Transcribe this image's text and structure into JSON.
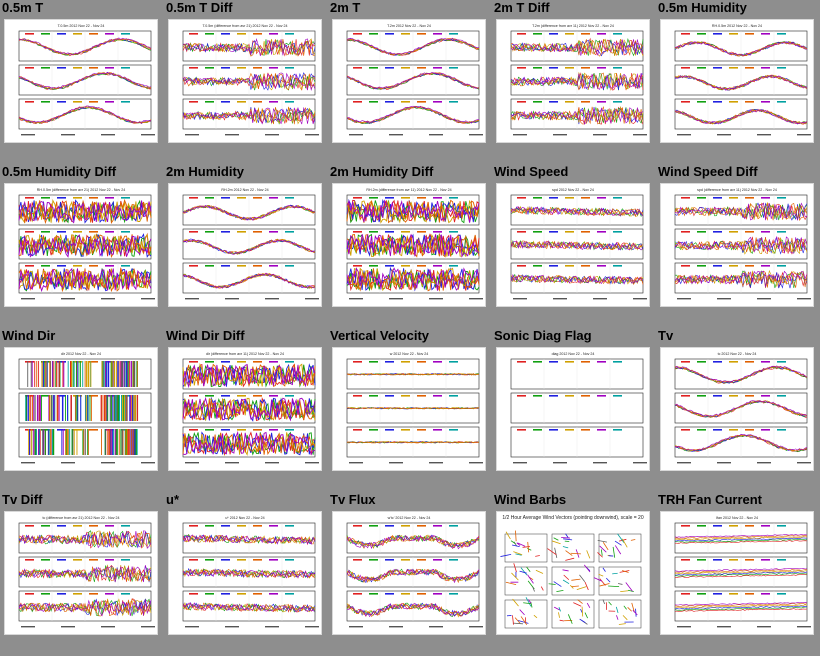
{
  "plots": [
    {
      "title": "0.5m T",
      "caption": "T.0.5m 2012 Nov 22 - Nov 24",
      "variant": "temp"
    },
    {
      "title": "0.5m T Diff",
      "caption": "T.0.5m (difference from avr 21) 2012 Nov 22 - Nov 24",
      "variant": "diff"
    },
    {
      "title": "2m T",
      "caption": "T.2m 2012 Nov 22 - Nov 24",
      "variant": "temp"
    },
    {
      "title": "2m T Diff",
      "caption": "T.2m (difference from avr 11) 2012 Nov 22 - Nov 24",
      "variant": "diff"
    },
    {
      "title": "0.5m Humidity",
      "caption": "RH.0.5m 2012 Nov 22 - Nov 24",
      "variant": "humid"
    },
    {
      "title": "0.5m Humidity Diff",
      "caption": "RH.0.5m (difference from avr 21) 2012 Nov 22 - Nov 24",
      "variant": "bigdiff"
    },
    {
      "title": "2m Humidity",
      "caption": "RH.2m 2012 Nov 22 - Nov 24",
      "variant": "humid"
    },
    {
      "title": "2m Humidity Diff",
      "caption": "RH.2m (difference from avr 11) 2012 Nov 22 - Nov 24",
      "variant": "bigdiff"
    },
    {
      "title": "Wind Speed",
      "caption": "spd 2012 Nov 22 - Nov 24",
      "variant": "flat"
    },
    {
      "title": "Wind Speed Diff",
      "caption": "spd (difference from avr 11) 2012 Nov 22 - Nov 24",
      "variant": "diff"
    },
    {
      "title": "Wind Dir",
      "caption": "dir 2012 Nov 22 - Nov 24",
      "variant": "dir"
    },
    {
      "title": "Wind Dir Diff",
      "caption": "dir (difference from avr 11) 2012 Nov 22 - Nov 24",
      "variant": "bigdiff"
    },
    {
      "title": "Vertical Velocity",
      "caption": "w 2012 Nov 22 - Nov 24",
      "variant": "quiet"
    },
    {
      "title": "Sonic Diag Flag",
      "caption": "diag 2012 Nov 22 - Nov 24",
      "variant": "empty"
    },
    {
      "title": "Tv",
      "caption": "tc 2012 Nov 22 - Nov 24",
      "variant": "temp"
    },
    {
      "title": "Tv Diff",
      "caption": "tc (difference from avr 21) 2012 Nov 22 - Nov 24",
      "variant": "diff"
    },
    {
      "title": "u*",
      "caption": "u* 2012 Nov 22 - Nov 24",
      "variant": "flat"
    },
    {
      "title": "Tv Flux",
      "caption": "w'tc' 2012 Nov 22 - Nov 24",
      "variant": "flux"
    },
    {
      "title": "Wind Barbs",
      "caption": "1/2 Hour Average Wind Vectors (pointing downwind), scale = 20",
      "variant": "barbs"
    },
    {
      "title": "TRH Fan Current",
      "caption": "Ifan 2012 Nov 22 - Nov 24",
      "variant": "fan"
    }
  ],
  "colors": {
    "page_background": "#8e8e8e",
    "series": [
      "#e02020",
      "#10a010",
      "#2020e0",
      "#d0a000",
      "#e06000",
      "#a000c0",
      "#00a0a0",
      "#606060"
    ]
  }
}
